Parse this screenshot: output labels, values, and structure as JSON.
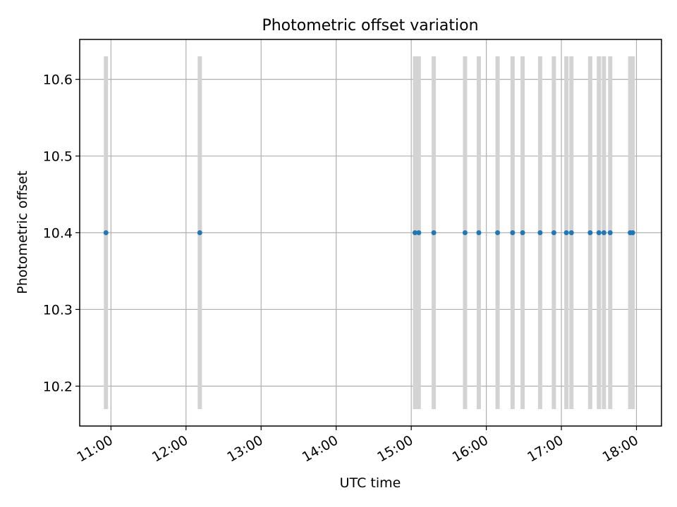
{
  "chart_data": {
    "type": "scatter",
    "title": "Photometric offset variation",
    "xlabel": "UTC time",
    "ylabel": "Photometric offset",
    "x_axis_type": "time",
    "xlim": [
      "10:35",
      "18:20"
    ],
    "ylim": [
      10.148,
      10.652
    ],
    "x_ticks": [
      "11:00",
      "12:00",
      "13:00",
      "14:00",
      "15:00",
      "16:00",
      "17:00",
      "18:00"
    ],
    "y_ticks": [
      10.2,
      10.3,
      10.4,
      10.5,
      10.6
    ],
    "y_tick_labels": [
      "10.2",
      "10.3",
      "10.4",
      "10.5",
      "10.6"
    ],
    "grid": true,
    "series": [
      {
        "color": "#1f77b4",
        "error_color": "#d3d3d3",
        "points": [
          {
            "x": "10:56",
            "y": 10.4,
            "err": 0.23
          },
          {
            "x": "12:11",
            "y": 10.4,
            "err": 0.23
          },
          {
            "x": "15:03",
            "y": 10.4,
            "err": 0.23
          },
          {
            "x": "15:06",
            "y": 10.4,
            "err": 0.23
          },
          {
            "x": "15:18",
            "y": 10.4,
            "err": 0.23
          },
          {
            "x": "15:43",
            "y": 10.4,
            "err": 0.23
          },
          {
            "x": "15:54",
            "y": 10.4,
            "err": 0.23
          },
          {
            "x": "16:09",
            "y": 10.4,
            "err": 0.23
          },
          {
            "x": "16:21",
            "y": 10.4,
            "err": 0.23
          },
          {
            "x": "16:29",
            "y": 10.4,
            "err": 0.23
          },
          {
            "x": "16:43",
            "y": 10.4,
            "err": 0.23
          },
          {
            "x": "16:54",
            "y": 10.4,
            "err": 0.23
          },
          {
            "x": "17:04",
            "y": 10.4,
            "err": 0.23
          },
          {
            "x": "17:08",
            "y": 10.4,
            "err": 0.23
          },
          {
            "x": "17:23",
            "y": 10.4,
            "err": 0.23
          },
          {
            "x": "17:30",
            "y": 10.4,
            "err": 0.23
          },
          {
            "x": "17:34",
            "y": 10.4,
            "err": 0.23
          },
          {
            "x": "17:39",
            "y": 10.4,
            "err": 0.23
          },
          {
            "x": "17:55",
            "y": 10.4,
            "err": 0.23
          },
          {
            "x": "17:57",
            "y": 10.4,
            "err": 0.23
          }
        ]
      }
    ]
  }
}
